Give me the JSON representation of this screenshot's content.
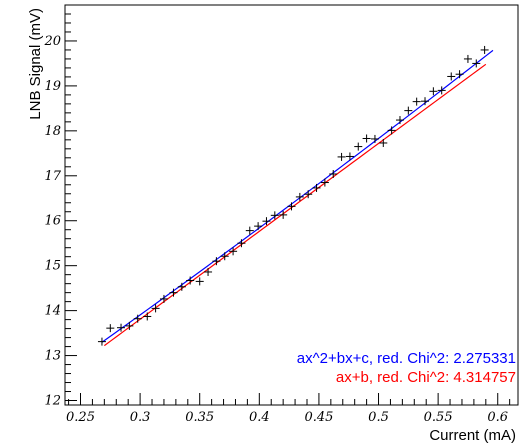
{
  "chart_data": {
    "type": "scatter",
    "title": "",
    "xlabel": "Current (mA)",
    "ylabel": "LNB Signal (mV)",
    "xlim": [
      0.237,
      0.617
    ],
    "ylim": [
      11.9,
      20.8
    ],
    "x_ticks": [
      0.25,
      0.3,
      0.35,
      0.4,
      0.45,
      0.5,
      0.55,
      0.6
    ],
    "x_tick_labels": [
      "0.25",
      "0.3",
      "0.35",
      "0.4",
      "0.45",
      "0.5",
      "0.55",
      "0.6"
    ],
    "y_ticks": [
      12,
      13,
      14,
      15,
      16,
      17,
      18,
      19,
      20
    ],
    "y_tick_labels": [
      "12",
      "13",
      "14",
      "15",
      "16",
      "17",
      "18",
      "19",
      "20"
    ],
    "grid": false,
    "legend_position": "bottom-right",
    "points": {
      "x": [
        0.268,
        0.275,
        0.284,
        0.291,
        0.298,
        0.306,
        0.313,
        0.32,
        0.328,
        0.335,
        0.342,
        0.35,
        0.357,
        0.364,
        0.371,
        0.378,
        0.385,
        0.392,
        0.399,
        0.406,
        0.413,
        0.42,
        0.427,
        0.434,
        0.441,
        0.448,
        0.455,
        0.462,
        0.469,
        0.476,
        0.483,
        0.49,
        0.497,
        0.504,
        0.511,
        0.518,
        0.525,
        0.532,
        0.539,
        0.546,
        0.553,
        0.561,
        0.568,
        0.575,
        0.582,
        0.589
      ],
      "y": [
        13.31,
        13.61,
        13.62,
        13.66,
        13.82,
        13.87,
        14.05,
        14.26,
        14.4,
        14.53,
        14.67,
        14.65,
        14.86,
        15.1,
        15.21,
        15.32,
        15.5,
        15.78,
        15.88,
        15.99,
        16.12,
        16.13,
        16.32,
        16.53,
        16.59,
        16.73,
        16.85,
        17.04,
        17.42,
        17.43,
        17.65,
        17.83,
        17.82,
        17.73,
        18.01,
        18.24,
        18.45,
        18.65,
        18.66,
        18.88,
        18.9,
        19.21,
        19.26,
        19.6,
        19.5,
        19.8
      ]
    },
    "series": [
      {
        "name": "ax^2+bx+c",
        "color": "#0000ff",
        "fit": "quadratic",
        "x_range": [
          0.268,
          0.596
        ],
        "coefficients": [
          2.7,
          17.47,
          8.42
        ]
      },
      {
        "name": "ax+b",
        "color": "#ff0000",
        "fit": "linear",
        "x_range": [
          0.27,
          0.59
        ],
        "coefficients": [
          19.56,
          7.94
        ]
      }
    ],
    "legend": [
      {
        "text": "ax^2+bx+c, red. Chi^2: 2.275331",
        "color": "#0000ff"
      },
      {
        "text": "ax+b, red. Chi^2: 4.314757",
        "color": "#ff0000"
      }
    ]
  }
}
